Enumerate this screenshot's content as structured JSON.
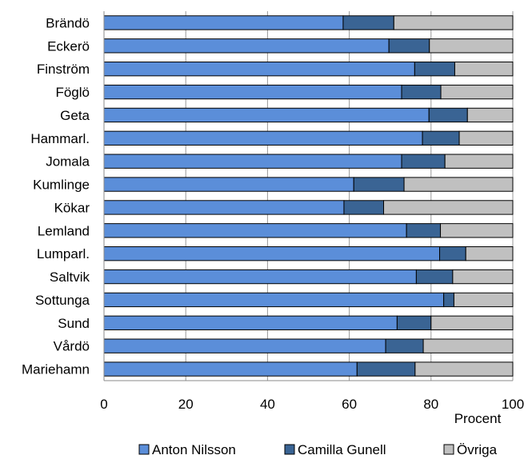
{
  "chart_data": {
    "type": "bar",
    "orientation": "horizontal",
    "stacked": true,
    "categories": [
      "Brändö",
      "Eckerö",
      "Finström",
      "Föglö",
      "Geta",
      "Hammarl.",
      "Jomala",
      "Kumlinge",
      "Kökar",
      "Lemland",
      "Lumparl.",
      "Saltvik",
      "Sottunga",
      "Sund",
      "Vårdö",
      "Mariehamn"
    ],
    "series": [
      {
        "name": "Anton Nilsson",
        "color": "#5b8ed9",
        "values": [
          58.5,
          69.7,
          76.0,
          72.8,
          79.5,
          77.9,
          72.8,
          61.1,
          58.7,
          74.0,
          82.1,
          76.4,
          83.1,
          71.7,
          68.9,
          61.9
        ]
      },
      {
        "name": "Camilla Gunell",
        "color": "#3a6494",
        "values": [
          12.4,
          9.9,
          9.8,
          9.6,
          9.4,
          9.0,
          10.6,
          12.3,
          9.7,
          8.3,
          6.4,
          8.9,
          2.5,
          8.3,
          9.2,
          14.2
        ]
      },
      {
        "name": "Övriga",
        "color": "#c0c0c0",
        "values": [
          29.1,
          20.4,
          14.2,
          17.6,
          11.1,
          13.1,
          16.6,
          26.6,
          31.6,
          17.7,
          11.5,
          14.7,
          14.4,
          20.0,
          21.9,
          23.9
        ]
      }
    ],
    "xlabel": "Procent",
    "xlim": [
      0,
      100
    ],
    "xticks": [
      "0",
      "20",
      "40",
      "60",
      "80",
      "100"
    ],
    "grid": "vertical",
    "legend_position": "bottom"
  }
}
